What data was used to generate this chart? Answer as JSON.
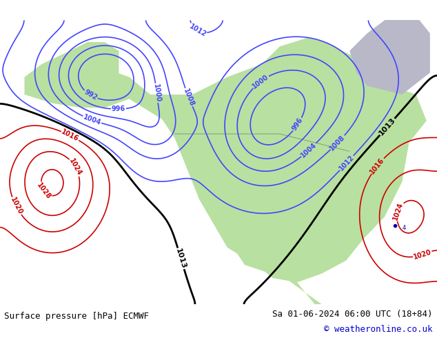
{
  "title_left": "Surface pressure [hPa] ECMWF",
  "title_right": "Sa 01-06-2024 06:00 UTC (18+84)",
  "copyright": "© weatheronline.co.uk",
  "bg_color": "#d0d0d8",
  "land_color": "#b8e0a0",
  "water_color": "#d0d0d8",
  "footer_bg": "#e8e8e8",
  "figsize": [
    6.34,
    4.9
  ],
  "dpi": 100,
  "map_extent": [
    -175,
    -50,
    10,
    75
  ]
}
